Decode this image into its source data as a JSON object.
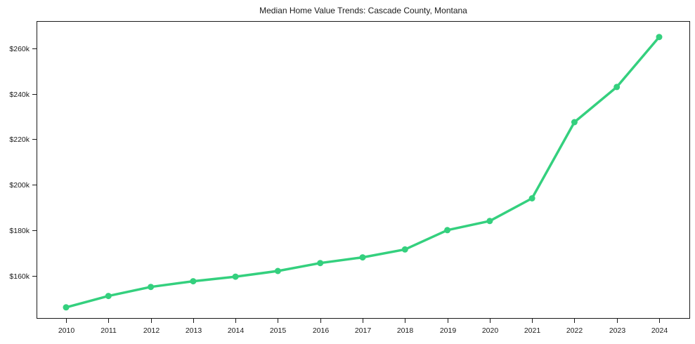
{
  "chart_data": {
    "type": "line",
    "title": "Median Home Value Trends: Cascade County, Montana",
    "x": [
      2010,
      2011,
      2012,
      2013,
      2014,
      2015,
      2016,
      2017,
      2018,
      2019,
      2020,
      2021,
      2022,
      2023,
      2024
    ],
    "values": [
      146000,
      151000,
      155000,
      157500,
      159500,
      162000,
      165500,
      168000,
      171500,
      180000,
      184000,
      194000,
      227500,
      243000,
      265000
    ],
    "series_name": "Median Home Value",
    "xlabel": "",
    "ylabel": "",
    "ylim": [
      141000,
      272000
    ],
    "yticks": {
      "values": [
        160000,
        180000,
        200000,
        220000,
        240000,
        260000
      ],
      "labels": [
        "$160k",
        "$180k",
        "$200k",
        "$220k",
        "$240k",
        "$260k"
      ]
    },
    "grid": false,
    "legend": "none",
    "marker": "circle"
  },
  "style": {
    "line_color": "#34d07e",
    "marker_color": "#34d07e",
    "axis_color": "#1a1a1a",
    "text_color": "#1a1a1a",
    "background": "#ffffff"
  }
}
